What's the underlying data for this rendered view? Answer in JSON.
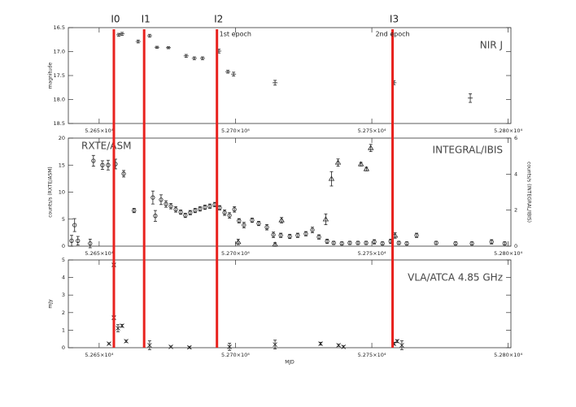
{
  "chart_data": [
    {
      "type": "scatter",
      "annotation": "NIR J",
      "ylabel": "magnitude",
      "ylim": [
        18.5,
        16.5
      ],
      "yticks": [
        16.5,
        {
          "value": 17,
          "label": "17.0"
        },
        17.5,
        {
          "value": 18,
          "label": "18.0"
        },
        18.5
      ],
      "xlim": [
        52638.7,
        52801
      ],
      "xticks": [
        {
          "value": 52650,
          "label": "5.265×10⁴"
        },
        {
          "value": 52700,
          "label": "5.270×10⁴"
        },
        {
          "value": 52750,
          "label": "5.275×10⁴"
        },
        {
          "value": 52800,
          "label": "5.280×10⁴"
        }
      ],
      "vlines": [
        {
          "x": 52655.4,
          "label": "I0"
        },
        {
          "x": 52666.5,
          "label": "I1"
        },
        {
          "x": 52693.2,
          "label": "I2"
        },
        {
          "x": 52757.6,
          "label": "I3"
        }
      ],
      "vline_color": "#e8221e",
      "epochs": [
        {
          "x": 52693.2,
          "label": "1st epoch"
        },
        {
          "x": 52757.6,
          "label": "2nd epoch"
        }
      ],
      "series": [
        {
          "name": "NIR J",
          "marker": "errorbar",
          "color": "#222222",
          "x": [
            52657.2,
            52658.4,
            52664.3,
            52668.5,
            52671.2,
            52675.4,
            52681.9,
            52684.9,
            52687.9,
            52693.9,
            52697.2,
            52699.3,
            52714.5,
            52758.1,
            52786.1
          ],
          "values": [
            16.65,
            16.63,
            16.79,
            16.67,
            16.91,
            16.92,
            17.09,
            17.14,
            17.14,
            16.99,
            17.42,
            17.47,
            17.65,
            17.65,
            17.97
          ],
          "errors": [
            0.03,
            0.03,
            0.03,
            0.03,
            0.02,
            0.02,
            0.03,
            0.03,
            0.03,
            0.04,
            0.03,
            0.04,
            0.05,
            0.04,
            0.09
          ]
        }
      ]
    },
    {
      "type": "scatter",
      "annotation": "RXTE/ASM",
      "annotation2": "INTEGRAL/IBIS",
      "ylabel": "counts/s (RXTE/ASM)",
      "y2label": "counts/s (INTEGRAL/IBIS)",
      "ylim": [
        0,
        20
      ],
      "yticks": [
        0,
        5,
        10,
        15,
        20
      ],
      "y2lim": [
        0,
        6
      ],
      "y2ticks": [
        0,
        2,
        4,
        6
      ],
      "series": [
        {
          "name": "RXTE/ASM",
          "marker": "circle",
          "color": "#222222",
          "x": [
            52639.9,
            52641.0,
            52642.2,
            52646.7,
            52647.9,
            52651.2,
            52653.3,
            52656.0,
            52659.0,
            52662.8,
            52669.7,
            52670.6,
            52672.7,
            52674.5,
            52676.3,
            52678.1,
            52679.9,
            52681.6,
            52683.4,
            52685.2,
            52687.0,
            52688.8,
            52690.6,
            52692.4,
            52694.2,
            52696.0,
            52697.8,
            52699.6,
            52701.3,
            52703.1,
            52706.1,
            52708.5,
            52711.5,
            52713.9,
            52716.6,
            52719.9,
            52722.8,
            52725.8,
            52728.2,
            52730.6,
            52733.6,
            52736.0,
            52739.0,
            52741.9,
            52744.9,
            52747.9,
            52750.9,
            52753.9,
            52756.9,
            52759.9,
            52762.8,
            52766.4,
            52773.6,
            52780.7,
            52786.7,
            52793.9,
            52798.7
          ],
          "values": [
            1.0,
            3.9,
            1.0,
            0.5,
            15.8,
            15.0,
            15.0,
            15.2,
            13.4,
            6.6,
            9.0,
            5.6,
            8.6,
            7.8,
            7.4,
            6.8,
            6.3,
            5.7,
            6.2,
            6.6,
            6.9,
            7.2,
            7.4,
            7.7,
            7.1,
            6.2,
            5.7,
            6.8,
            4.7,
            3.9,
            4.8,
            4.2,
            3.5,
            2.1,
            2.0,
            1.8,
            2.0,
            2.3,
            3.0,
            1.7,
            0.9,
            0.6,
            0.5,
            0.6,
            0.6,
            0.6,
            0.8,
            0.5,
            0.9,
            0.6,
            0.5,
            2.0,
            0.6,
            0.5,
            0.5,
            0.8,
            0.5
          ],
          "errors": [
            1.0,
            1.2,
            0.8,
            0.8,
            1.0,
            0.8,
            0.9,
            0.9,
            0.6,
            0.4,
            1.2,
            1.0,
            0.9,
            0.6,
            0.5,
            0.5,
            0.4,
            0.4,
            0.4,
            0.4,
            0.4,
            0.4,
            0.4,
            0.4,
            0.4,
            0.5,
            0.5,
            0.5,
            0.4,
            0.5,
            0.4,
            0.4,
            0.5,
            0.5,
            0.4,
            0.4,
            0.4,
            0.4,
            0.5,
            0.4,
            0.4,
            0.3,
            0.3,
            0.3,
            0.3,
            0.3,
            0.4,
            0.3,
            0.4,
            0.3,
            0.3,
            0.4,
            0.3,
            0.3,
            0.3,
            0.4,
            0.3
          ]
        },
        {
          "name": "INTEGRAL/IBIS",
          "marker": "triangle",
          "color": "#222222",
          "axis": "y2",
          "x": [
            52701.0,
            52714.5,
            52716.9,
            52733.1,
            52735.2,
            52737.6,
            52746.0,
            52748.0,
            52749.6,
            52758.5
          ],
          "values": [
            0.23,
            0.09,
            1.44,
            1.49,
            3.74,
            4.64,
            4.55,
            4.28,
            5.45,
            0.59
          ],
          "errors": [
            0.15,
            0.1,
            0.15,
            0.3,
            0.4,
            0.2,
            0.1,
            0.1,
            0.2,
            0.15
          ]
        }
      ]
    },
    {
      "type": "scatter",
      "annotation": "VLA/ATCA 4.85 GHz",
      "ylabel": "mJy",
      "xlabel": "MJD",
      "ylim": [
        0,
        5
      ],
      "yticks": [
        0,
        1,
        2,
        3,
        4,
        5
      ],
      "series": [
        {
          "name": "VLA/ATCA 4.85 GHz",
          "marker": "x",
          "color": "#222222",
          "x": [
            52653.6,
            52655.4,
            52655.4,
            52656.9,
            52658.4,
            52659.9,
            52668.5,
            52676.3,
            52683.1,
            52697.8,
            52714.5,
            52731.2,
            52737.8,
            52739.6,
            52758.1,
            52759.3,
            52761.0
          ],
          "values": [
            0.23,
            4.72,
            1.71,
            1.11,
            1.25,
            0.37,
            0.14,
            0.05,
            0.02,
            0.05,
            0.18,
            0.23,
            0.14,
            0.05,
            0.23,
            0.37,
            0.14
          ],
          "errors": [
            0.05,
            0.05,
            0.1,
            0.2,
            0.08,
            0.06,
            0.25,
            0.05,
            0.05,
            0.2,
            0.25,
            0.08,
            0.06,
            0.06,
            0.08,
            0.08,
            0.25
          ]
        }
      ]
    }
  ]
}
